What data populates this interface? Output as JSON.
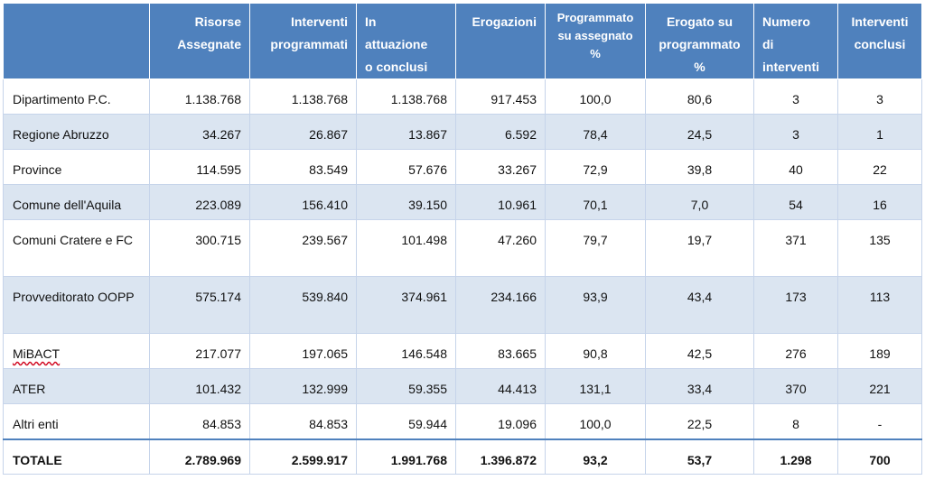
{
  "headers": {
    "risorse": [
      "Risorse",
      "Assegnate"
    ],
    "programmati": [
      "Interventi",
      "programmati"
    ],
    "attuazione": [
      "In",
      "attuazione",
      "o conclusi"
    ],
    "erogazioni": [
      "Erogazioni"
    ],
    "prog_su_ass": [
      "Programmato",
      "su assegnato",
      "%"
    ],
    "erog_su_prog": [
      "Erogato su",
      "programmato",
      "%"
    ],
    "numero": [
      "Numero",
      "di",
      "interventi"
    ],
    "conclusi": [
      "Interventi",
      "conclusi"
    ]
  },
  "rows": [
    {
      "label": "Dipartimento P.C.",
      "risorse": "1.138.768",
      "programmati": "1.138.768",
      "attuazione": "1.138.768",
      "erogazioni": "917.453",
      "prog_su_ass": "100,0",
      "erog_su_prog": "80,6",
      "numero": "3",
      "conclusi": "3"
    },
    {
      "label": "Regione Abruzzo",
      "risorse": "34.267",
      "programmati": "26.867",
      "attuazione": "13.867",
      "erogazioni": "6.592",
      "prog_su_ass": "78,4",
      "erog_su_prog": "24,5",
      "numero": "3",
      "conclusi": "1"
    },
    {
      "label": "Province",
      "risorse": "114.595",
      "programmati": "83.549",
      "attuazione": "57.676",
      "erogazioni": "33.267",
      "prog_su_ass": "72,9",
      "erog_su_prog": "39,8",
      "numero": "40",
      "conclusi": "22"
    },
    {
      "label": "Comune dell'Aquila",
      "risorse": "223.089",
      "programmati": "156.410",
      "attuazione": "39.150",
      "erogazioni": "10.961",
      "prog_su_ass": "70,1",
      "erog_su_prog": "7,0",
      "numero": "54",
      "conclusi": "16"
    },
    {
      "label": "Comuni Cratere e FC",
      "risorse": "300.715",
      "programmati": "239.567",
      "attuazione": "101.498",
      "erogazioni": "47.260",
      "prog_su_ass": "79,7",
      "erog_su_prog": "19,7",
      "numero": "371",
      "conclusi": "135"
    },
    {
      "label": "Provveditorato OOPP",
      "risorse": "575.174",
      "programmati": "539.840",
      "attuazione": "374.961",
      "erogazioni": "234.166",
      "prog_su_ass": "93,9",
      "erog_su_prog": "43,4",
      "numero": "173",
      "conclusi": "113"
    },
    {
      "label": "MiBACT",
      "risorse": "217.077",
      "programmati": "197.065",
      "attuazione": "146.548",
      "erogazioni": "83.665",
      "prog_su_ass": "90,8",
      "erog_su_prog": "42,5",
      "numero": "276",
      "conclusi": "189"
    },
    {
      "label": "ATER",
      "risorse": "101.432",
      "programmati": "132.999",
      "attuazione": "59.355",
      "erogazioni": "44.413",
      "prog_su_ass": "131,1",
      "erog_su_prog": "33,4",
      "numero": "370",
      "conclusi": "221"
    },
    {
      "label": "Altri enti",
      "risorse": "84.853",
      "programmati": "84.853",
      "attuazione": "59.944",
      "erogazioni": "19.096",
      "prog_su_ass": "100,0",
      "erog_su_prog": "22,5",
      "numero": "8",
      "conclusi": "-"
    }
  ],
  "total": {
    "label": "TOTALE",
    "risorse": "2.789.969",
    "programmati": "2.599.917",
    "attuazione": "1.991.768",
    "erogazioni": "1.396.872",
    "prog_su_ass": "93,2",
    "erog_su_prog": "53,7",
    "numero": "1.298",
    "conclusi": "700"
  },
  "colors": {
    "header_bg": "#4f81bd",
    "alt_row_bg": "#dbe5f1",
    "border": "#c6d4ea"
  }
}
